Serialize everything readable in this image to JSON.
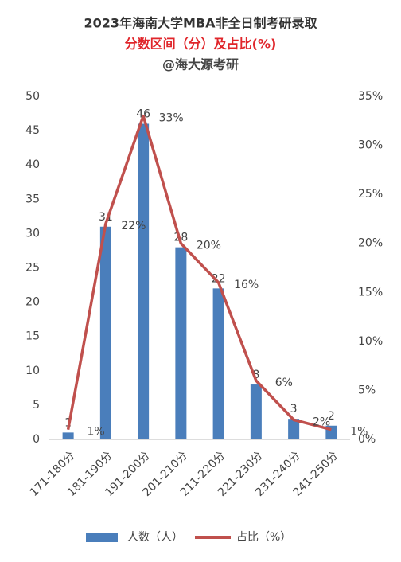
{
  "chart_data": {
    "type": "bar",
    "title": "2023年海南大学MBA非全日制考研录取",
    "subtitle": "分数区间（分）及占比(%)",
    "annotation": "@海大源考研",
    "categories": [
      "171-180分",
      "181-190分",
      "191-200分",
      "201-210分",
      "211-220分",
      "221-230分",
      "231-240分",
      "241-250分"
    ],
    "series": [
      {
        "name": "人数（人）",
        "type": "bar",
        "color": "#4a7ebb",
        "values": [
          1,
          31,
          46,
          28,
          22,
          8,
          3,
          2
        ]
      },
      {
        "name": "占比（%）",
        "type": "line",
        "axis": "y2",
        "color": "#c0504d",
        "values": [
          1,
          22,
          33,
          20,
          16,
          6,
          2,
          1
        ],
        "value_labels": [
          "1%",
          "22%",
          "33%",
          "20%",
          "16%",
          "6%",
          "2%",
          "1%"
        ]
      }
    ],
    "ylim": [
      0,
      50
    ],
    "yticks": [
      0,
      5,
      10,
      15,
      20,
      25,
      30,
      35,
      40,
      45,
      50
    ],
    "y2lim": [
      0,
      35
    ],
    "y2ticks": [
      {
        "value": 0,
        "label": "0%"
      },
      {
        "value": 5,
        "label": "5%"
      },
      {
        "value": 10,
        "label": "10%"
      },
      {
        "value": 15,
        "label": "15%"
      },
      {
        "value": 20,
        "label": "20%"
      },
      {
        "value": 25,
        "label": "25%"
      },
      {
        "value": 30,
        "label": "30%"
      },
      {
        "value": 35,
        "label": "35%"
      }
    ],
    "grid": false,
    "legend": "bottom"
  }
}
